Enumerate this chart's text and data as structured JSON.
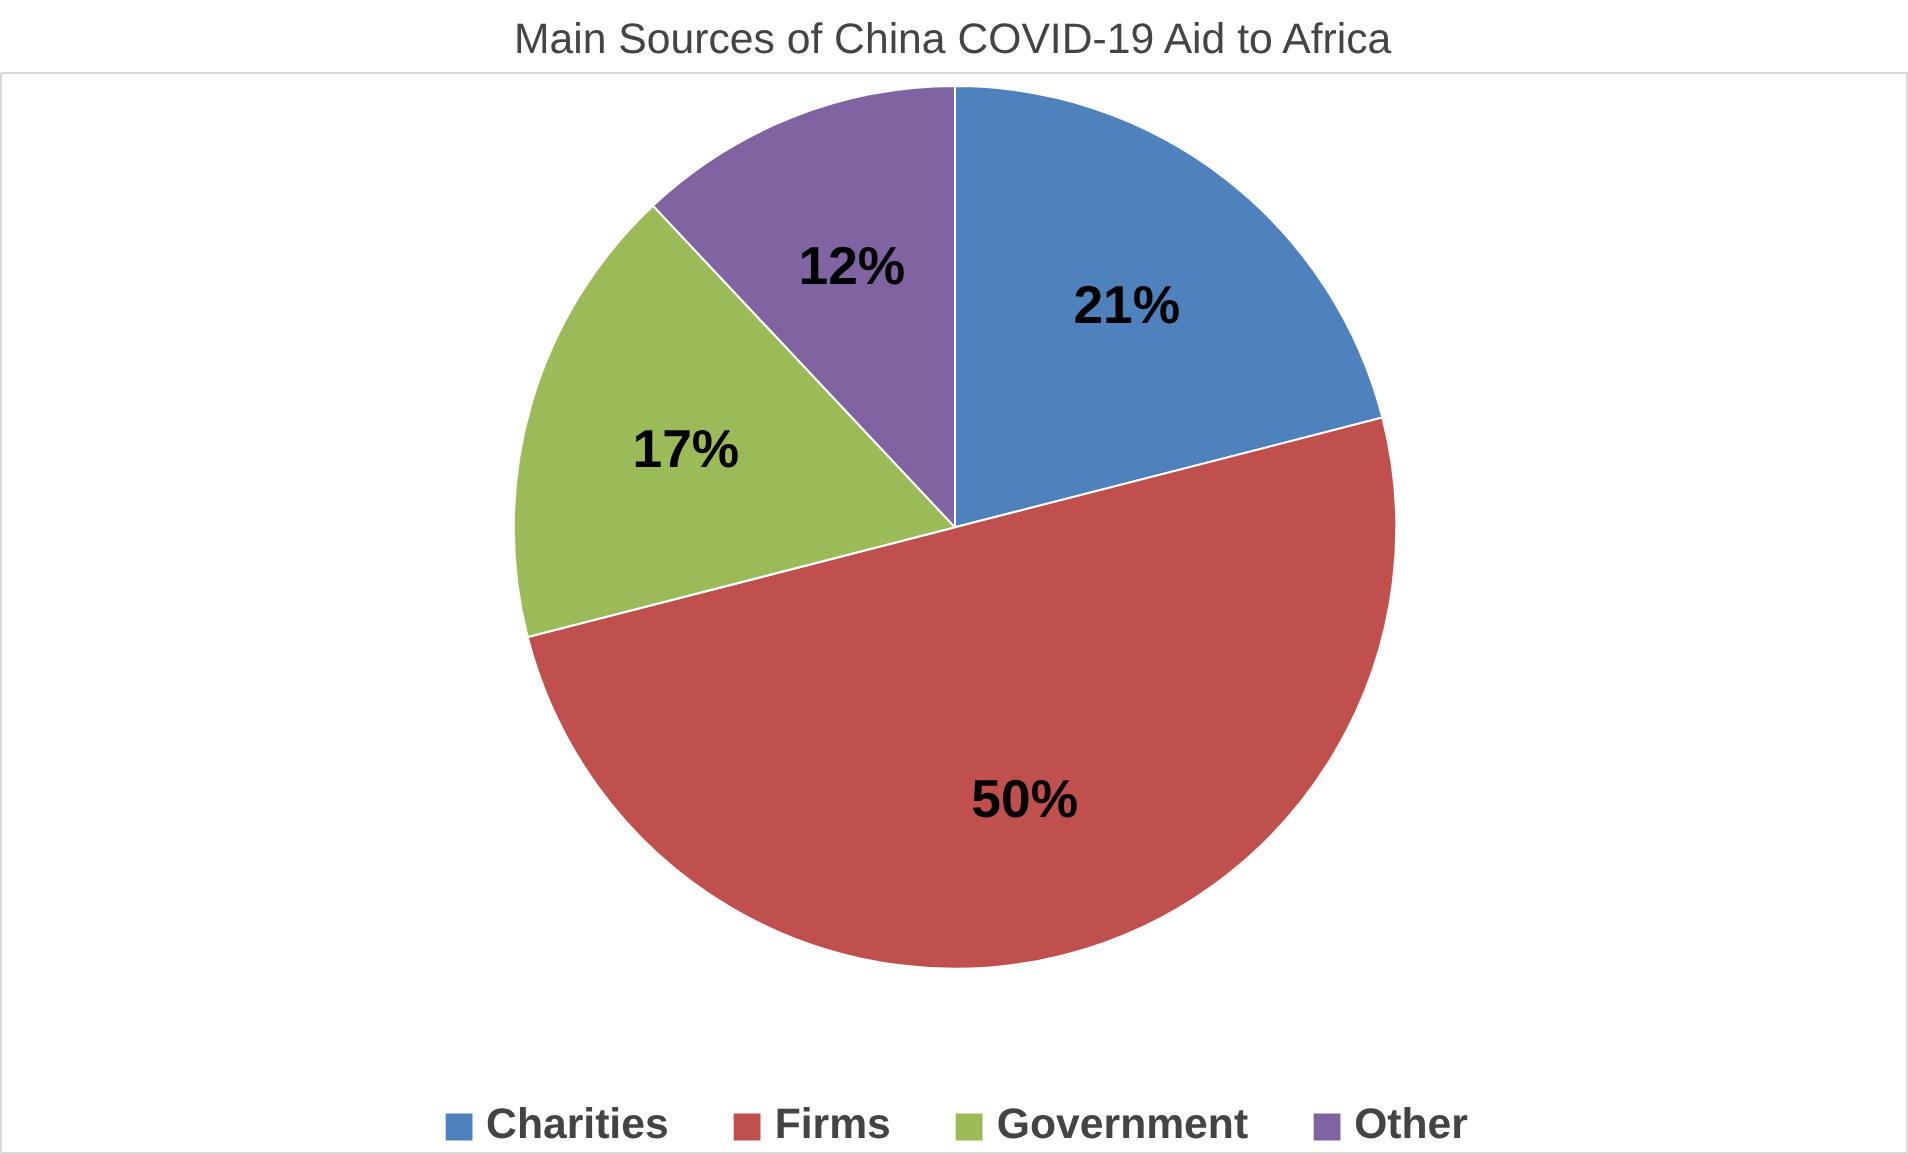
{
  "chart_data": {
    "type": "pie",
    "title": "Main Sources of China COVID-19 Aid to Africa",
    "categories": [
      "Charities",
      "Firms",
      "Government",
      "Other"
    ],
    "values": [
      21,
      50,
      17,
      12
    ],
    "colors": [
      "#4f81bd",
      "#c0504d",
      "#9bbb59",
      "#8064a2"
    ],
    "value_labels": [
      "21%",
      "50%",
      "17%",
      "12%"
    ],
    "legend": "bottom"
  }
}
